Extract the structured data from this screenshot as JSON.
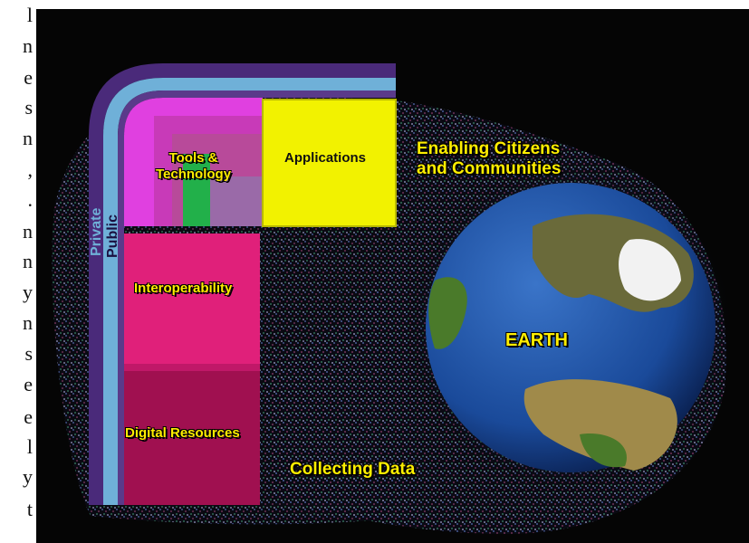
{
  "left_strip": [
    "l",
    "n",
    "e",
    "s",
    "n",
    ",",
    ".",
    "n",
    "n",
    "y",
    "n",
    "s",
    "e",
    "e",
    "l",
    "y",
    "t"
  ],
  "labels": {
    "private": "Private",
    "public": "Public",
    "tools_line1": "Tools &",
    "tools_line2": "Technology",
    "applications": "Applications",
    "enabling_line1": "Enabling Citizens",
    "enabling_line2": "and Communities",
    "interoperability": "Interoperability",
    "digital_resources": "Digital Resources",
    "collecting_data": "Collecting Data",
    "earth": "EARTH"
  },
  "colors": {
    "background": "#050505",
    "private_band": "#4a2a7a",
    "public_band": "#6fb0d8",
    "tools_outer": "#e040e0",
    "tools_inner": "#b84a9a",
    "tools_green": "#22b04a",
    "applications": "#f2f200",
    "interoperability": "#e0207a",
    "digital_resources": "#a01050",
    "label_yellow": "#ffee00",
    "ocean": "#1a4fa0",
    "land": "#4a7a2a",
    "ice": "#f2f2f2"
  }
}
